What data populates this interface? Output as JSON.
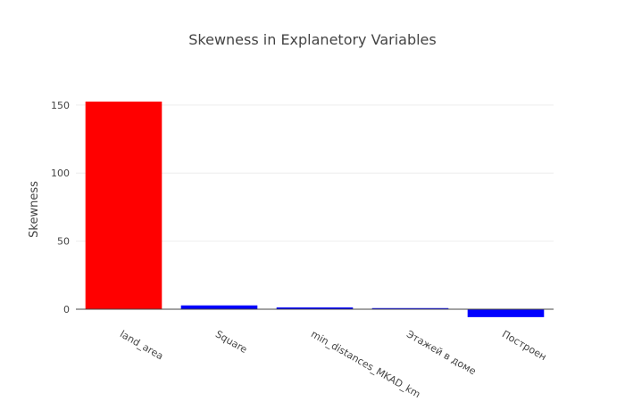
{
  "chart_data": {
    "type": "bar",
    "title": "Skewness in Explanetory Variables",
    "xlabel": "",
    "ylabel": "Skewness",
    "categories": [
      "land_area",
      "Square",
      "min_distances_MKAD_km",
      "Этажей в доме",
      "Построен"
    ],
    "values": [
      152.5,
      2.8,
      1.3,
      0.8,
      -5.8
    ],
    "colors": [
      "#ff0000",
      "#0000ff",
      "#0000ff",
      "#0000ff",
      "#0000ff"
    ],
    "ylim": [
      -7,
      152.5
    ],
    "yticks": [
      0,
      50,
      100,
      150
    ],
    "grid": true,
    "legend": "none"
  }
}
